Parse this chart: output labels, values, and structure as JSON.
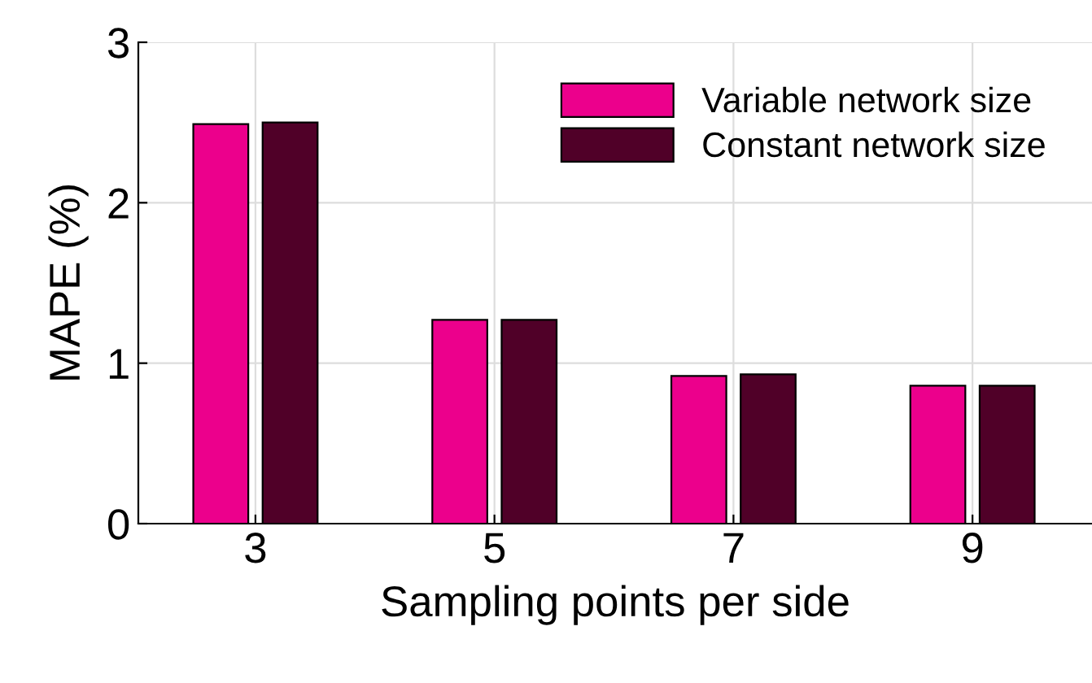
{
  "chart_data": {
    "type": "bar",
    "xlabel": "Sampling points per side",
    "ylabel": "MAPE (%)",
    "categories": [
      "3",
      "5",
      "7",
      "9"
    ],
    "series": [
      {
        "name": "Variable network size",
        "color": "#ec008c",
        "values": [
          2.49,
          1.27,
          0.92,
          0.86
        ]
      },
      {
        "name": "Constant network size",
        "color": "#500028",
        "values": [
          2.5,
          1.27,
          0.93,
          0.86
        ]
      }
    ],
    "ylim": [
      0,
      3
    ],
    "yticks": [
      0,
      1,
      2,
      3
    ],
    "grid": true,
    "legend": "top right"
  }
}
